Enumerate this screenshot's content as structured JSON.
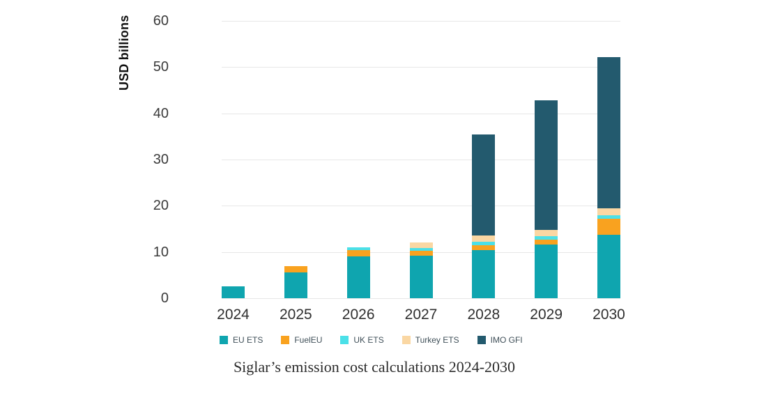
{
  "chart_data": {
    "type": "bar",
    "stacked": true,
    "caption": "Siglar’s emission cost calculations 2024-2030",
    "ylabel": "USD billions",
    "xlabel": "",
    "categories": [
      "2024",
      "2025",
      "2026",
      "2027",
      "2028",
      "2029",
      "2030"
    ],
    "series": [
      {
        "name": "EU ETS",
        "color": "#0FA5AF",
        "values": [
          2.6,
          5.6,
          9.0,
          9.2,
          10.4,
          11.6,
          13.7
        ]
      },
      {
        "name": "FuelEU",
        "color": "#F9A21F",
        "values": [
          0,
          1.4,
          1.4,
          1.0,
          1.0,
          1.0,
          3.5
        ]
      },
      {
        "name": "UK ETS",
        "color": "#4BE0E8",
        "values": [
          0,
          0,
          0.6,
          0.6,
          0.8,
          0.8,
          0.7
        ]
      },
      {
        "name": "Turkey ETS",
        "color": "#FAD7A3",
        "values": [
          0,
          0,
          0,
          1.3,
          1.3,
          1.4,
          1.5
        ]
      },
      {
        "name": "IMO GFI",
        "color": "#235A6E",
        "values": [
          0,
          0,
          0,
          0,
          22.0,
          28.0,
          32.7
        ]
      }
    ],
    "totals": [
      2.6,
      7.0,
      11.0,
      12.1,
      35.5,
      42.8,
      52.1
    ],
    "ylim": [
      0,
      60
    ],
    "yticks": [
      0,
      10,
      20,
      30,
      40,
      50,
      60
    ],
    "grid": true,
    "legend_position": "bottom"
  }
}
